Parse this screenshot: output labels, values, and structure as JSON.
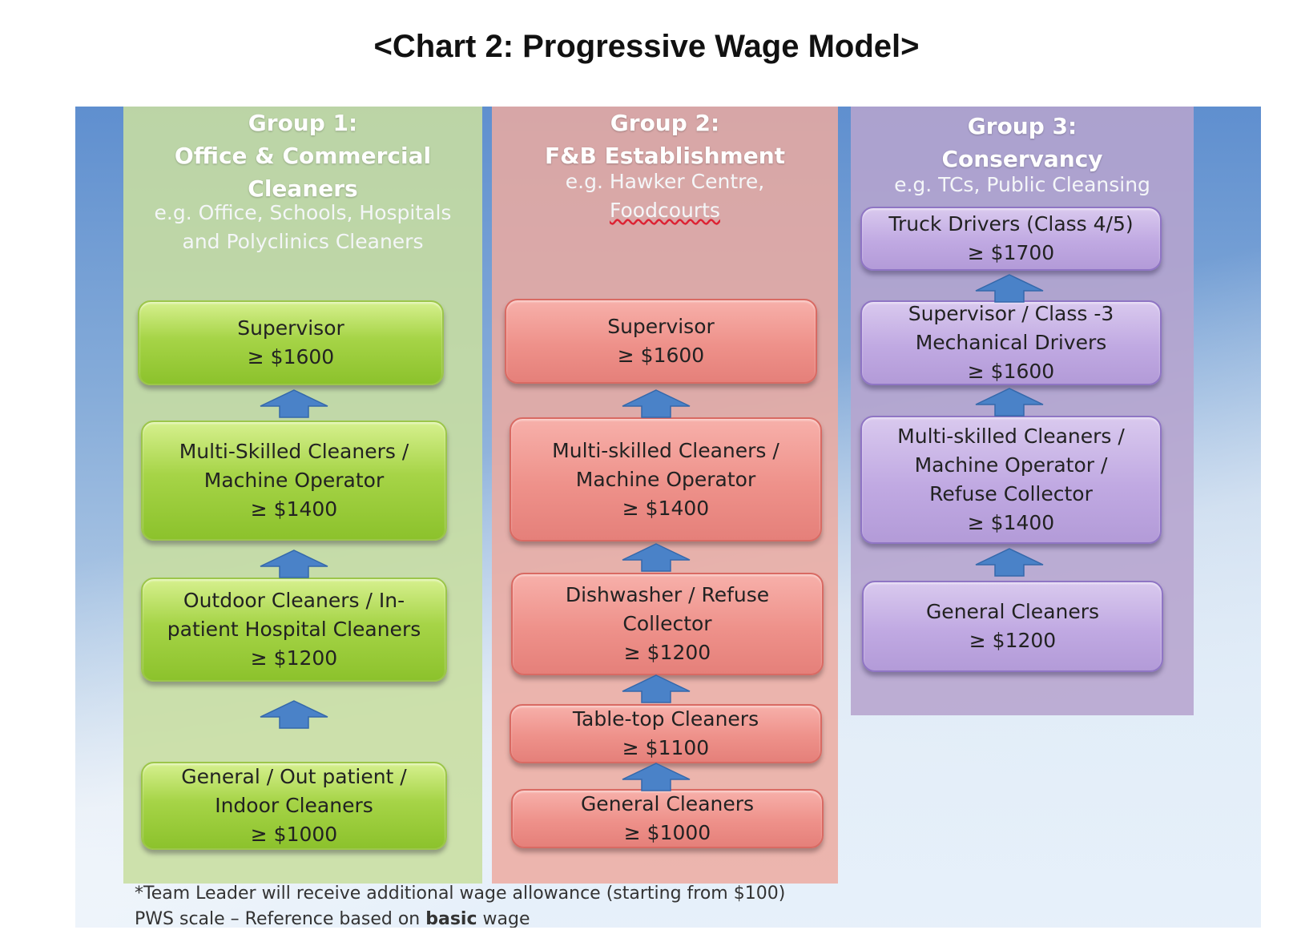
{
  "title": "<Chart 2: Progressive Wage Model>",
  "groups": [
    {
      "heading": [
        "Group 1:",
        "Office & Commercial",
        "Cleaners"
      ],
      "subtitle": [
        "e.g. Office, Schools, Hospitals",
        "and  Polyclinics Cleaners"
      ],
      "levels": [
        {
          "lines": [
            "Supervisor",
            "≥ $1600"
          ]
        },
        {
          "lines": [
            "Multi-Skilled Cleaners /",
            "Machine Operator",
            "≥ $1400"
          ]
        },
        {
          "lines": [
            "Outdoor Cleaners / In-",
            "patient Hospital Cleaners",
            "≥ $1200"
          ]
        },
        {
          "lines": [
            "General / Out patient /",
            "Indoor Cleaners",
            "≥ $1000"
          ]
        }
      ]
    },
    {
      "heading": [
        "Group 2:",
        "F&B Establishment"
      ],
      "subtitle": [
        "e.g. Hawker Centre,",
        "Foodcourts"
      ],
      "levels": [
        {
          "lines": [
            "Supervisor",
            "≥  $1600"
          ]
        },
        {
          "lines": [
            "Multi-skilled Cleaners /",
            "Machine Operator",
            "≥ $1400"
          ]
        },
        {
          "lines": [
            "Dishwasher / Refuse",
            "Collector",
            "≥ $1200"
          ]
        },
        {
          "lines": [
            "Table-top Cleaners",
            "≥ $1100"
          ]
        },
        {
          "lines": [
            "General Cleaners",
            "≥ $1000"
          ]
        }
      ]
    },
    {
      "heading": [
        "Group 3:",
        "Conservancy"
      ],
      "subtitle": [
        "e.g. TCs, Public Cleansing"
      ],
      "levels": [
        {
          "lines": [
            "Truck Drivers (Class 4/5)",
            "≥ $1700"
          ]
        },
        {
          "lines": [
            "Supervisor / Class -3",
            "Mechanical Drivers",
            "≥ $1600"
          ]
        },
        {
          "lines": [
            "Multi-skilled Cleaners /",
            "Machine Operator /",
            "Refuse Collector",
            "≥ $1400"
          ]
        },
        {
          "lines": [
            "General Cleaners",
            "≥ $1200"
          ]
        }
      ]
    }
  ],
  "footnotes": {
    "line1": "*Team Leader will receive additional wage allowance (starting from $100)",
    "line2_prefix": "PWS scale – Reference based on ",
    "line2_bold": "basic",
    "line2_suffix": " wage"
  },
  "colors": {
    "group1_box": "#a6d447",
    "group2_box": "#ee918a",
    "group3_box": "#c0a9e2",
    "arrow": "#4a82c8"
  }
}
